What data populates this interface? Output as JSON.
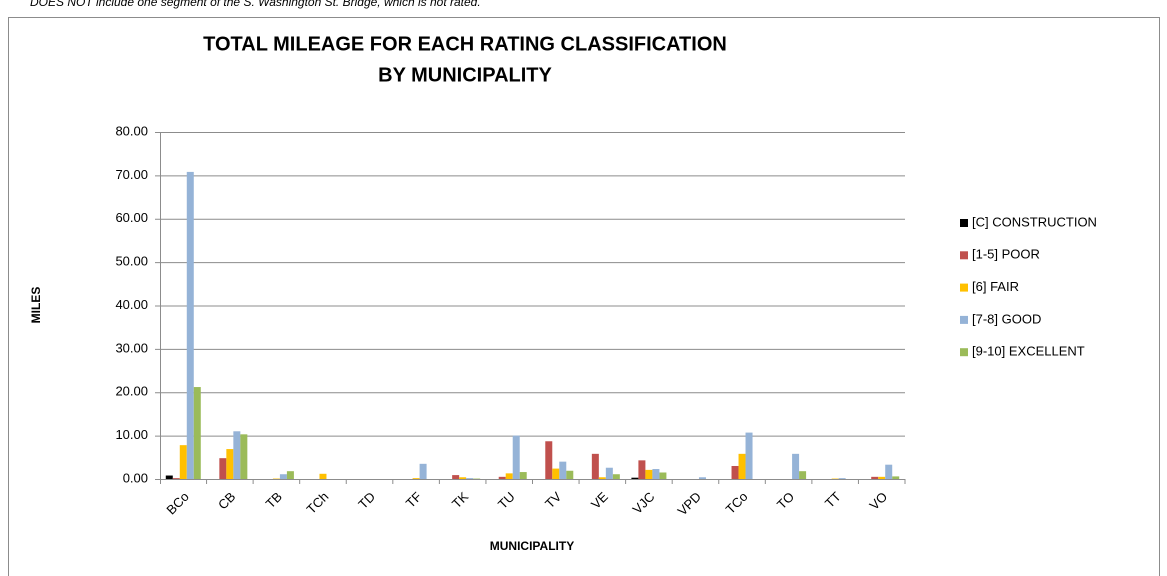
{
  "chart_data": {
    "type": "bar",
    "note": "DOES NOT include one segment of the S. Washington St. Bridge, which is not rated.",
    "title": [
      "TOTAL MILEAGE FOR EACH RATING CLASSIFICATION",
      "BY MUNICIPALITY"
    ],
    "x_label": "MUNICIPALITY",
    "y_label": "MILES",
    "categories": [
      "BCo",
      "CB",
      "TB",
      "TCh",
      "TD",
      "TF",
      "TK",
      "TU",
      "TV",
      "VE",
      "VJC",
      "VPD",
      "TCo",
      "TO",
      "TT",
      "VO"
    ],
    "series": [
      {
        "name": "[C] CONSTRUCTION",
        "color": "#000000",
        "values": [
          0.8,
          0,
          0,
          0,
          0,
          0,
          0,
          0,
          0,
          0,
          0.3,
          0,
          0,
          0,
          0,
          0
        ]
      },
      {
        "name": "[1-5] POOR",
        "color": "#c0504d",
        "values": [
          0.2,
          4.8,
          0,
          0,
          0,
          0,
          0.9,
          0.5,
          8.7,
          5.8,
          4.3,
          0,
          3.0,
          0,
          0,
          0.5
        ]
      },
      {
        "name": "[6] FAIR",
        "color": "#ffc000",
        "values": [
          7.8,
          6.9,
          0.1,
          1.2,
          0,
          0.2,
          0.4,
          1.3,
          2.4,
          0.4,
          2.1,
          0,
          5.8,
          0,
          0.1,
          0.5
        ]
      },
      {
        "name": "[7-8] GOOD",
        "color": "#95b3d7",
        "values": [
          70.8,
          11.0,
          1.1,
          0,
          0,
          3.5,
          0.2,
          10.0,
          4.0,
          2.6,
          2.3,
          0.4,
          10.7,
          5.8,
          0.2,
          3.3
        ]
      },
      {
        "name": "[9-10] EXCELLENT",
        "color": "#9bbb59",
        "values": [
          21.2,
          10.3,
          1.8,
          0,
          0,
          0,
          0.1,
          1.6,
          1.9,
          1.1,
          1.5,
          0,
          0,
          1.8,
          0,
          0.6
        ]
      }
    ],
    "ylim": [
      0,
      80
    ],
    "yticks": [
      {
        "value": 0,
        "label": "0.00"
      },
      {
        "value": 10,
        "label": "10.00"
      },
      {
        "value": 20,
        "label": "20.00"
      },
      {
        "value": 30,
        "label": "30.00"
      },
      {
        "value": 40,
        "label": "40.00"
      },
      {
        "value": 50,
        "label": "50.00"
      },
      {
        "value": 60,
        "label": "60.00"
      },
      {
        "value": 70,
        "label": "70.00"
      },
      {
        "value": 80,
        "label": "80.00"
      }
    ],
    "grid": true,
    "legend": "right"
  }
}
